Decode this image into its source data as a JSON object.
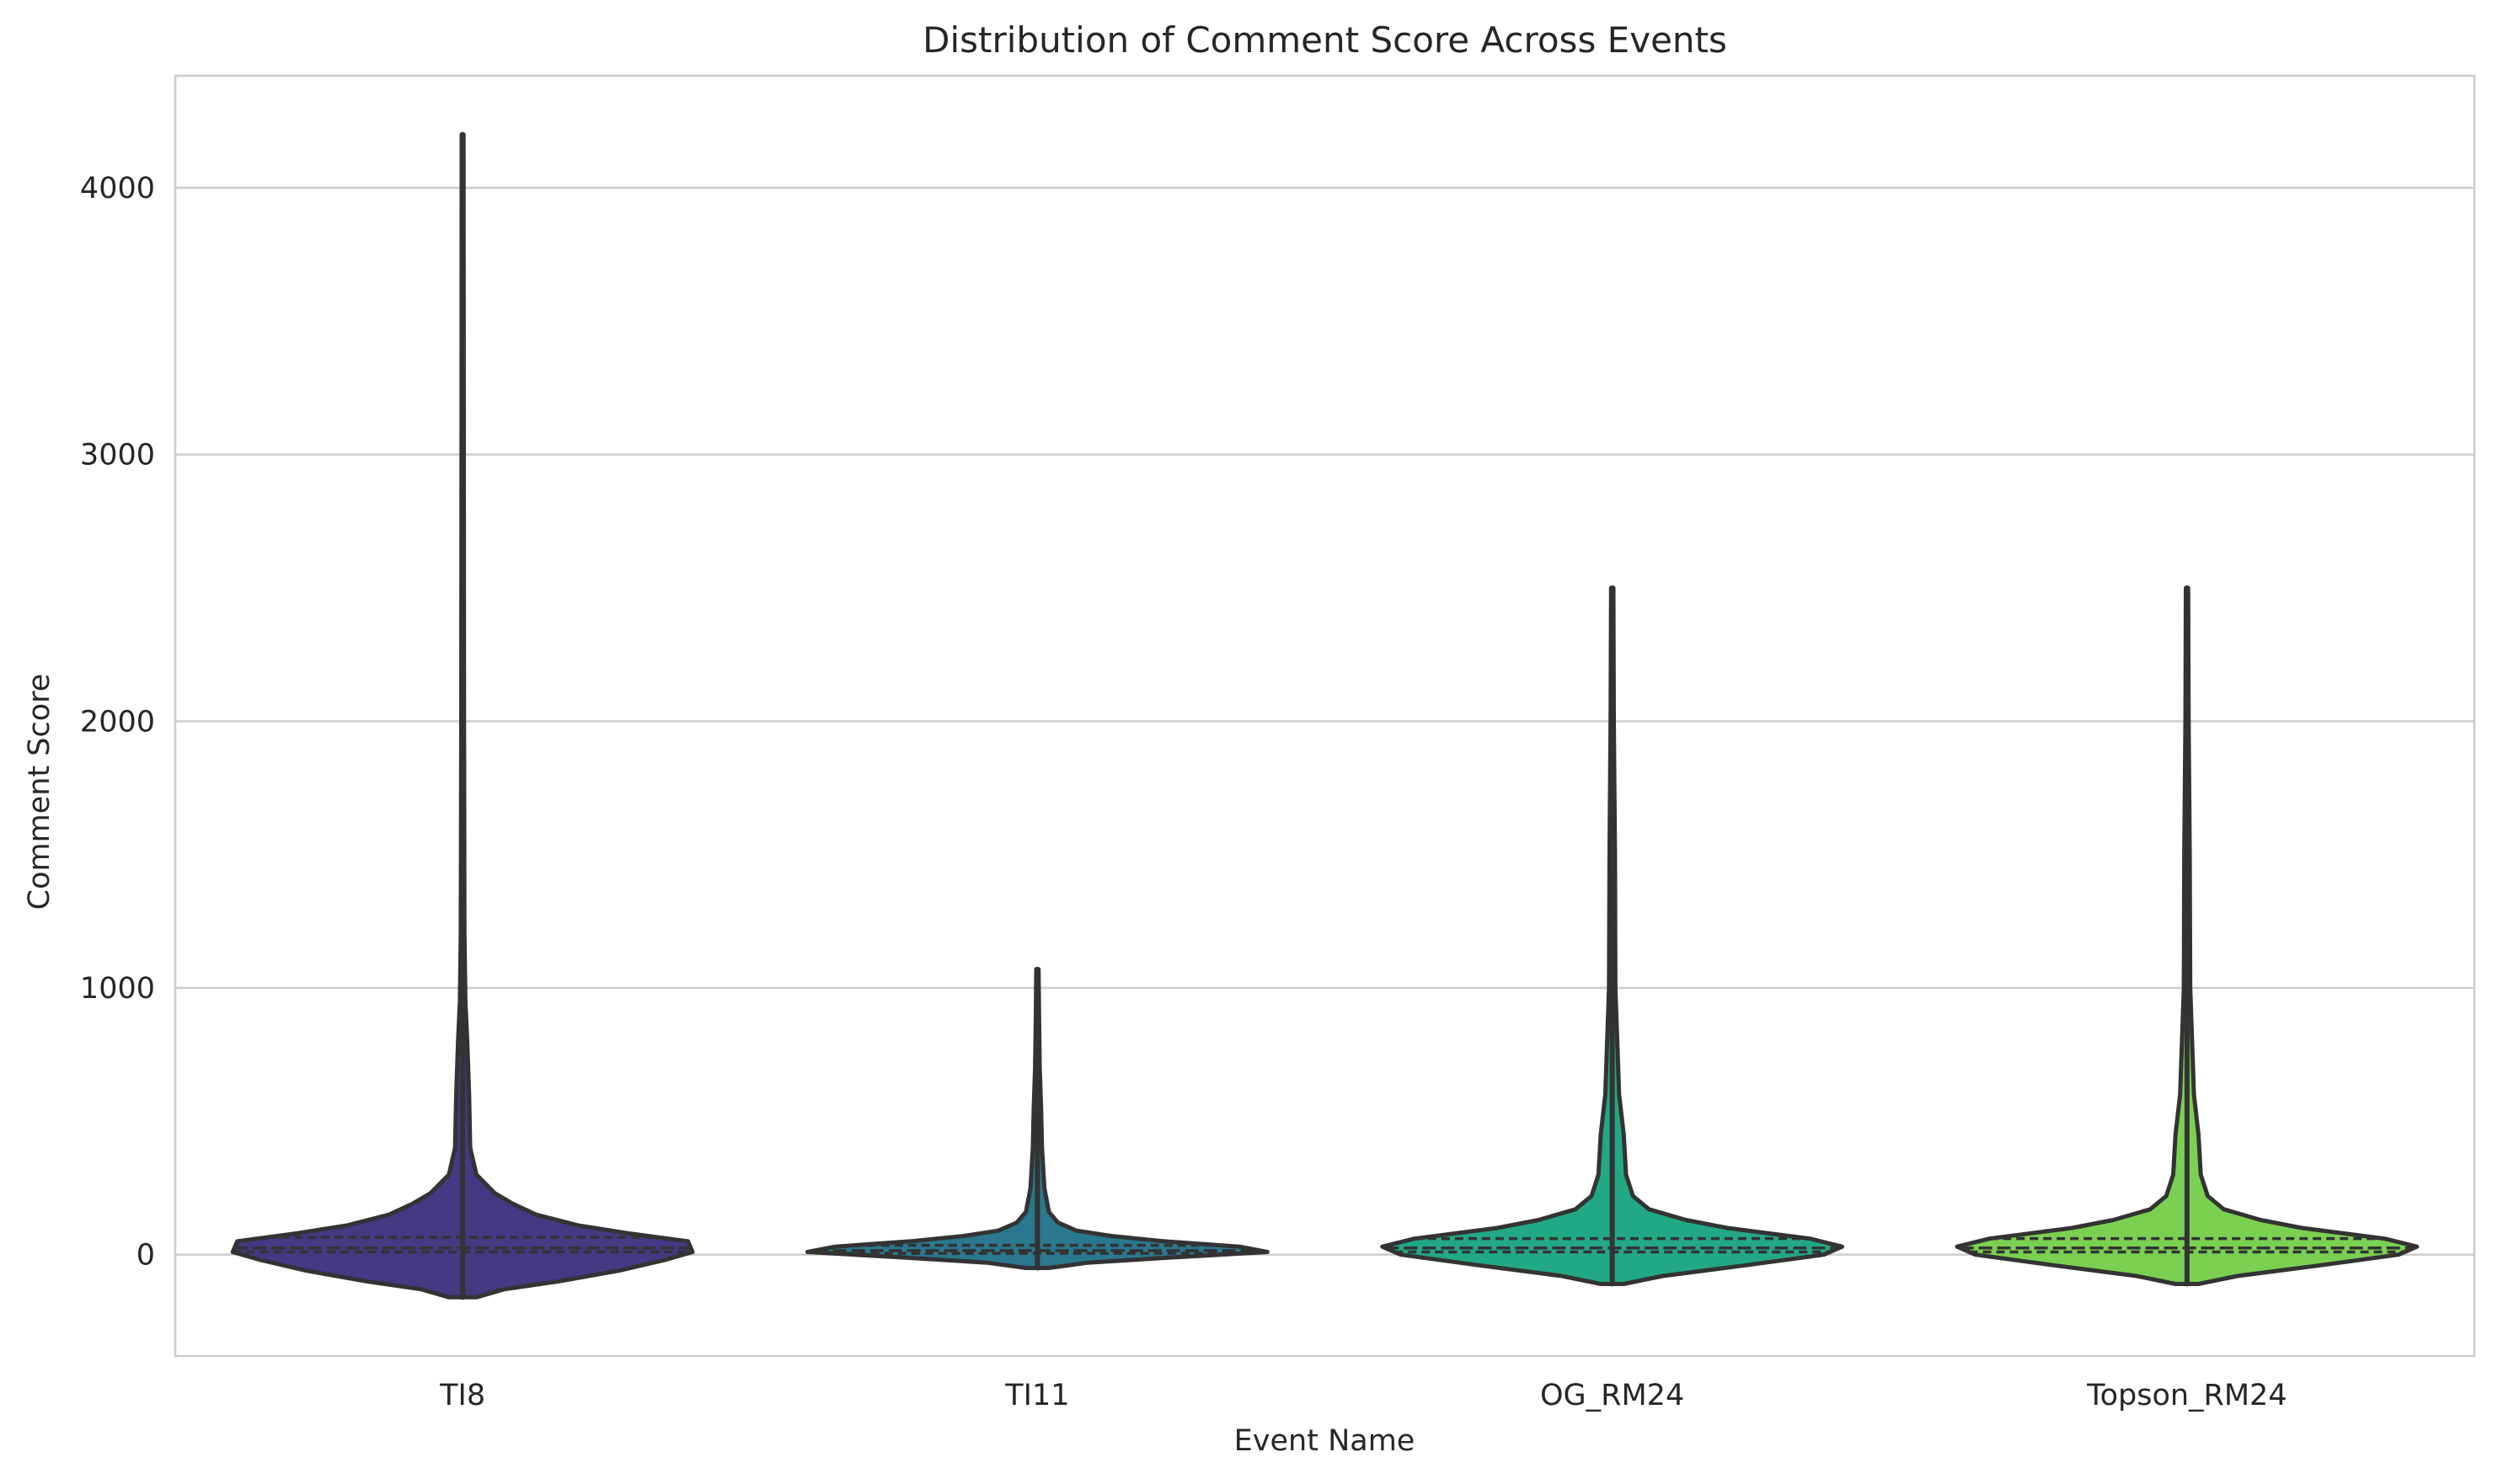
{
  "chart_data": {
    "type": "violin",
    "title": "Distribution of Comment Score Across Events",
    "xlabel": "Event Name",
    "ylabel": "Comment Score",
    "categories": [
      "TI8",
      "TI11",
      "OG_RM24",
      "Topson_RM24"
    ],
    "y_ticks": [
      0,
      1000,
      2000,
      3000,
      4000
    ],
    "ylim": [
      -380,
      4420
    ],
    "grid": "horizontal",
    "legend": "none",
    "series": [
      {
        "color": "#443983",
        "min": -160,
        "max": 4200,
        "q1": 10,
        "median": 25,
        "q3": 65,
        "density": [
          [
            -160,
            0.06
          ],
          [
            -130,
            0.18
          ],
          [
            -100,
            0.42
          ],
          [
            -60,
            0.68
          ],
          [
            -20,
            0.88
          ],
          [
            10,
            1.0
          ],
          [
            50,
            0.98
          ],
          [
            80,
            0.72
          ],
          [
            110,
            0.5
          ],
          [
            150,
            0.32
          ],
          [
            190,
            0.22
          ],
          [
            230,
            0.14
          ],
          [
            300,
            0.06
          ],
          [
            400,
            0.033
          ],
          [
            600,
            0.028
          ],
          [
            800,
            0.02
          ],
          [
            950,
            0.012
          ],
          [
            1200,
            0.008
          ],
          [
            2000,
            0.006
          ],
          [
            3000,
            0.005
          ],
          [
            4200,
            0.004
          ]
        ]
      },
      {
        "color": "#2a788e",
        "min": -50,
        "max": 1070,
        "q1": 5,
        "median": 15,
        "q3": 35,
        "density": [
          [
            -50,
            0.05
          ],
          [
            -30,
            0.22
          ],
          [
            -10,
            0.6
          ],
          [
            10,
            1.0
          ],
          [
            30,
            0.88
          ],
          [
            50,
            0.55
          ],
          [
            70,
            0.32
          ],
          [
            90,
            0.17
          ],
          [
            120,
            0.09
          ],
          [
            160,
            0.05
          ],
          [
            250,
            0.03
          ],
          [
            400,
            0.02
          ],
          [
            550,
            0.016
          ],
          [
            700,
            0.01
          ],
          [
            900,
            0.007
          ],
          [
            1070,
            0.005
          ]
        ]
      },
      {
        "color": "#22a884",
        "min": -110,
        "max": 2500,
        "q1": 10,
        "median": 25,
        "q3": 60,
        "density": [
          [
            -110,
            0.05
          ],
          [
            -80,
            0.22
          ],
          [
            -40,
            0.58
          ],
          [
            0,
            0.92
          ],
          [
            30,
            1.0
          ],
          [
            60,
            0.86
          ],
          [
            100,
            0.5
          ],
          [
            130,
            0.32
          ],
          [
            170,
            0.16
          ],
          [
            220,
            0.09
          ],
          [
            300,
            0.06
          ],
          [
            450,
            0.05
          ],
          [
            600,
            0.03
          ],
          [
            800,
            0.022
          ],
          [
            1000,
            0.014
          ],
          [
            1500,
            0.012
          ],
          [
            2000,
            0.007
          ],
          [
            2500,
            0.005
          ]
        ]
      },
      {
        "color": "#7ad151",
        "min": -110,
        "max": 2500,
        "q1": 10,
        "median": 25,
        "q3": 60,
        "density": [
          [
            -110,
            0.05
          ],
          [
            -80,
            0.22
          ],
          [
            -40,
            0.58
          ],
          [
            0,
            0.92
          ],
          [
            30,
            1.0
          ],
          [
            60,
            0.86
          ],
          [
            100,
            0.5
          ],
          [
            130,
            0.32
          ],
          [
            170,
            0.16
          ],
          [
            220,
            0.09
          ],
          [
            300,
            0.06
          ],
          [
            450,
            0.05
          ],
          [
            600,
            0.03
          ],
          [
            800,
            0.022
          ],
          [
            1000,
            0.014
          ],
          [
            1500,
            0.012
          ],
          [
            2000,
            0.007
          ],
          [
            2500,
            0.005
          ]
        ]
      }
    ]
  }
}
